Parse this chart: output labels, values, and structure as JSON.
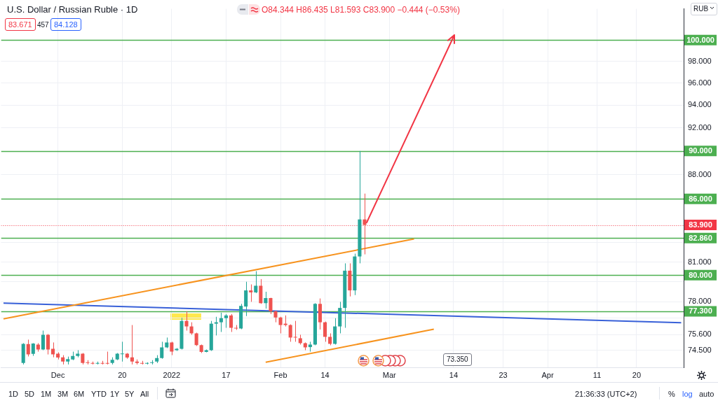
{
  "chart_data": {
    "type": "candlestick",
    "title": "U.S. Dollar / Russian Ruble · 1D",
    "categories": [
      null,
      null,
      null,
      null,
      null,
      null,
      null,
      null,
      null,
      null,
      null,
      "Dec",
      null,
      null,
      null,
      null,
      null,
      null,
      null,
      null,
      null,
      null,
      null,
      null,
      "20",
      null,
      null,
      null,
      null,
      null,
      null,
      null,
      null,
      null,
      "2022",
      null,
      null,
      null,
      null,
      null,
      null,
      null,
      null,
      null,
      null,
      "17",
      null,
      null,
      null,
      null,
      null,
      null,
      null,
      null,
      null,
      null,
      "Feb",
      null,
      null,
      null,
      null,
      null,
      null,
      null,
      null,
      "14",
      null,
      null,
      null,
      null,
      null,
      null,
      null,
      null,
      null,
      null,
      null,
      null,
      "Mar",
      null,
      null,
      null,
      null,
      null,
      null,
      null,
      null,
      null,
      null,
      null,
      null,
      "14",
      null,
      null,
      null,
      null,
      null,
      null,
      null,
      null,
      null,
      "23",
      null,
      null,
      null,
      null,
      null,
      null,
      null,
      null,
      "Apr",
      null,
      null,
      null,
      null,
      null,
      null,
      null,
      null,
      null,
      "11",
      null,
      null,
      null,
      null,
      null,
      null,
      null,
      "20",
      null,
      null,
      null,
      null,
      null,
      null,
      null,
      null,
      null
    ],
    "ohlc": [
      null,
      null,
      null,
      null,
      [
        73.6,
        75.0,
        73.5,
        74.95
      ],
      [
        74.94,
        75.25,
        74.06,
        74.21
      ],
      [
        74.24,
        75.0,
        74.1,
        74.97
      ],
      [
        74.9,
        75.0,
        74.4,
        74.55
      ],
      [
        74.55,
        75.9,
        74.5,
        75.6
      ],
      [
        75.6,
        75.65,
        74.2,
        74.55
      ],
      [
        74.6,
        75.05,
        74.0,
        74.2
      ],
      [
        74.25,
        74.35,
        73.85,
        73.99
      ],
      [
        74.0,
        74.15,
        73.5,
        73.7
      ],
      [
        73.7,
        74.05,
        73.5,
        73.88
      ],
      [
        73.85,
        74.4,
        73.8,
        74.1
      ],
      [
        74.1,
        74.5,
        74.0,
        74.25
      ],
      [
        74.25,
        74.3,
        73.5,
        73.6
      ],
      [
        73.65,
        73.8,
        73.5,
        73.6
      ],
      [
        73.6,
        73.7,
        73.5,
        73.55
      ],
      [
        73.55,
        73.7,
        73.5,
        73.6
      ],
      [
        73.6,
        73.75,
        73.5,
        73.55
      ],
      [
        73.6,
        74.4,
        73.5,
        73.55
      ],
      [
        73.6,
        74.0,
        73.5,
        73.83
      ],
      [
        73.85,
        74.3,
        73.8,
        74.25
      ],
      [
        74.22,
        75.1,
        73.7,
        74.25
      ],
      [
        74.25,
        74.3,
        73.9,
        73.99
      ],
      [
        74.0,
        76.3,
        73.5,
        73.7
      ],
      [
        73.7,
        73.85,
        73.5,
        73.6
      ],
      [
        73.6,
        73.75,
        73.5,
        73.55
      ],
      [
        73.55,
        73.65,
        73.5,
        73.6
      ],
      [
        73.6,
        73.8,
        73.5,
        73.65
      ],
      [
        73.7,
        74.15,
        73.6,
        73.95
      ],
      [
        73.95,
        75.1,
        73.9,
        74.7
      ],
      [
        74.7,
        75.4,
        74.65,
        75.05
      ],
      [
        75.05,
        75.1,
        74.15,
        74.4
      ],
      [
        74.5,
        74.65,
        74.45,
        74.6
      ],
      [
        74.6,
        76.82,
        74.55,
        76.6
      ],
      [
        76.6,
        77.3,
        75.9,
        76.2
      ],
      [
        76.2,
        76.5,
        75.6,
        75.7
      ],
      [
        75.7,
        75.75,
        74.8,
        74.86
      ],
      [
        74.86,
        74.9,
        74.3,
        74.38
      ],
      [
        74.38,
        74.55,
        74.35,
        74.5
      ],
      [
        74.5,
        76.6,
        74.45,
        76.4
      ],
      [
        76.4,
        76.9,
        75.55,
        76.5
      ],
      [
        76.5,
        77.2,
        75.8,
        76.8
      ],
      [
        76.8,
        77.1,
        76.1,
        77.0
      ],
      [
        77.0,
        77.1,
        75.8,
        76.1
      ],
      [
        76.1,
        76.3,
        75.95,
        76.05
      ],
      [
        76.05,
        77.85,
        76.0,
        77.7
      ],
      [
        77.65,
        79.5,
        76.95,
        78.85
      ],
      [
        78.85,
        79.3,
        78.0,
        78.7
      ],
      [
        78.7,
        80.3,
        78.65,
        79.2
      ],
      [
        79.2,
        79.7,
        77.85,
        77.9
      ],
      [
        77.9,
        78.75,
        77.5,
        78.28
      ],
      [
        78.28,
        78.3,
        77.1,
        77.3
      ],
      [
        77.3,
        77.35,
        76.5,
        76.85
      ],
      [
        76.85,
        76.9,
        75.7,
        76.3
      ],
      [
        76.4,
        77.0,
        76.2,
        76.3
      ],
      [
        76.3,
        76.35,
        75.1,
        75.4
      ],
      [
        75.45,
        76.6,
        75.1,
        75.4
      ],
      [
        75.35,
        75.6,
        74.9,
        75.0
      ],
      [
        75.0,
        75.05,
        74.5,
        74.7
      ],
      [
        74.72,
        75.1,
        74.4,
        74.9
      ],
      [
        74.9,
        77.9,
        74.85,
        77.85
      ],
      [
        77.85,
        78.25,
        75.98,
        76.5
      ],
      [
        76.5,
        76.55,
        75.1,
        75.45
      ],
      [
        75.45,
        75.7,
        74.85,
        74.95
      ],
      [
        74.95,
        76.8,
        74.9,
        76.2
      ],
      [
        76.2,
        78.0,
        75.7,
        77.55
      ],
      [
        77.55,
        80.9,
        76.1,
        80.34
      ],
      [
        80.34,
        80.9,
        78.4,
        78.85
      ],
      [
        78.85,
        81.65,
        78.5,
        81.43
      ],
      [
        81.43,
        90.0,
        80.9,
        84.344
      ],
      [
        84.344,
        86.435,
        81.593,
        83.9
      ],
      null,
      null,
      null,
      null,
      null,
      null,
      null,
      null,
      null,
      null,
      null,
      null,
      null,
      null,
      null,
      null,
      null,
      null,
      null,
      null,
      null,
      null,
      null,
      null,
      null,
      null,
      null,
      null,
      null,
      null,
      null,
      null,
      null,
      null,
      null,
      null,
      null,
      null,
      null,
      null,
      null,
      null,
      null,
      null,
      null,
      null,
      null,
      null,
      null,
      null,
      null,
      null,
      null,
      null,
      null,
      null,
      null,
      null,
      null,
      null,
      null,
      null,
      null,
      null
    ],
    "colors": [
      null,
      null,
      null,
      null,
      "#26a69a",
      "#ef5350",
      "#26a69a",
      "#ef5350",
      "#26a69a",
      "#ef5350",
      "#ef5350",
      "#ef5350",
      "#ef5350",
      "#26a69a",
      "#26a69a",
      "#26a69a",
      "#ef5350",
      "#ef5350",
      "#ef5350",
      "#26a69a",
      "#ef5350",
      "#ef5350",
      "#26a69a",
      "#26a69a",
      "#26a69a",
      "#ef5350",
      "#ef5350",
      "#ef5350",
      "#ef5350",
      "#26a69a",
      "#26a69a",
      "#26a69a",
      "#26a69a",
      "#26a69a",
      "#ef5350",
      "#26a69a",
      "#26a69a",
      "#ef5350",
      "#ef5350",
      "#ef5350",
      "#ef5350",
      "#26a69a",
      "#26a69a",
      "#26a69a",
      "#26a69a",
      "#26a69a",
      "#ef5350",
      "#ef5350",
      "#26a69a",
      "#26a69a",
      "#ef5350",
      "#26a69a",
      "#ef5350",
      "#26a69a",
      "#ef5350",
      "#ef5350",
      "#ef5350",
      "#ef5350",
      "#ef5350",
      "#ef5350",
      "#ef5350",
      "#ef5350",
      "#26a69a",
      "#26a69a",
      "#ef5350",
      "#ef5350",
      "#ef5350",
      "#26a69a",
      "#26a69a",
      "#26a69a",
      "#ef5350",
      "#26a69a",
      "#26a69a",
      "#ef5350",
      null,
      null,
      null,
      null,
      null,
      null,
      null,
      null,
      null,
      null,
      null,
      null,
      null,
      null,
      null,
      null,
      null,
      null,
      null,
      null,
      null,
      null,
      null,
      null,
      null,
      null,
      null,
      null,
      null,
      null,
      null,
      null,
      null,
      null,
      null,
      null,
      null,
      null,
      null,
      null,
      null,
      null,
      null,
      null,
      null,
      null,
      null,
      null,
      null,
      null,
      null,
      null,
      null,
      null,
      null,
      null,
      null,
      null,
      null,
      null,
      null,
      null,
      null,
      null
    ],
    "series": [
      {
        "type": "line",
        "color": "#f7931e",
        "values": [
          76.75,
          null,
          null,
          null,
          null,
          null,
          null,
          null,
          null,
          null,
          null,
          null,
          null,
          null,
          null,
          null,
          null,
          null,
          null,
          null,
          null,
          null,
          null,
          null,
          null,
          null,
          null,
          null,
          null,
          null,
          null,
          null,
          null,
          null,
          null,
          null,
          null,
          null,
          null,
          null,
          null,
          null,
          null,
          null,
          null,
          null,
          null,
          null,
          null,
          null,
          null,
          null,
          null,
          null,
          null,
          null,
          null,
          null,
          null,
          null,
          null,
          null,
          null,
          null,
          null,
          null,
          null,
          null,
          null,
          null,
          null,
          null,
          null,
          null,
          null,
          null,
          null,
          null,
          null,
          null,
          null,
          null,
          null,
          82.8,
          null,
          null,
          null,
          null,
          null,
          null,
          null,
          null,
          null,
          null,
          null,
          null,
          null,
          null,
          null,
          null,
          null,
          null,
          null,
          null,
          null,
          null,
          null,
          null,
          null,
          null,
          null,
          null,
          null,
          null,
          null,
          null,
          null,
          null,
          null,
          null,
          null,
          null,
          null,
          null,
          null,
          null,
          null,
          null,
          null,
          null,
          null,
          null,
          null,
          null,
          null,
          null,
          null,
          null
        ]
      },
      {
        "type": "line",
        "color": "#f7931e",
        "values": [
          null,
          null,
          null,
          null,
          null,
          null,
          null,
          null,
          null,
          null,
          null,
          null,
          null,
          null,
          null,
          null,
          null,
          null,
          null,
          null,
          null,
          null,
          null,
          null,
          null,
          null,
          null,
          null,
          null,
          null,
          null,
          null,
          null,
          null,
          null,
          null,
          null,
          null,
          null,
          null,
          null,
          null,
          null,
          null,
          null,
          null,
          null,
          null,
          null,
          null,
          null,
          null,
          null,
          73.65,
          null,
          null,
          null,
          null,
          null,
          null,
          null,
          null,
          null,
          null,
          null,
          null,
          null,
          null,
          null,
          null,
          null,
          null,
          null,
          null,
          null,
          null,
          null,
          null,
          null,
          null,
          null,
          null,
          null,
          null,
          null,
          null,
          null,
          76.0,
          null,
          null,
          null,
          null,
          null,
          null,
          null,
          null,
          null,
          null,
          null,
          null,
          null,
          null,
          null,
          null,
          null,
          null,
          null,
          null,
          null,
          null,
          null,
          null,
          null,
          null,
          null,
          null,
          null,
          null,
          null,
          null,
          null,
          null,
          null,
          null,
          null,
          null,
          null,
          null,
          null,
          null,
          null,
          null,
          null,
          null,
          null,
          null,
          null,
          null
        ]
      },
      {
        "type": "line",
        "color": "#3860d8",
        "values": [
          77.9,
          null,
          null,
          null,
          null,
          null,
          null,
          null,
          null,
          null,
          null,
          null,
          null,
          null,
          null,
          null,
          null,
          null,
          null,
          null,
          null,
          null,
          null,
          null,
          null,
          null,
          null,
          null,
          null,
          null,
          null,
          null,
          null,
          null,
          null,
          null,
          null,
          null,
          null,
          null,
          null,
          null,
          null,
          null,
          null,
          null,
          null,
          null,
          null,
          null,
          null,
          null,
          null,
          null,
          null,
          null,
          null,
          null,
          null,
          null,
          null,
          null,
          null,
          null,
          null,
          null,
          null,
          null,
          null,
          null,
          null,
          null,
          null,
          null,
          null,
          null,
          null,
          null,
          null,
          null,
          null,
          null,
          null,
          null,
          null,
          null,
          null,
          null,
          null,
          null,
          null,
          null,
          null,
          null,
          null,
          null,
          null,
          null,
          null,
          null,
          null,
          null,
          null,
          null,
          null,
          null,
          null,
          null,
          null,
          null,
          null,
          null,
          null,
          null,
          null,
          null,
          null,
          null,
          null,
          null,
          null,
          null,
          null,
          null,
          null,
          null,
          null,
          null,
          null,
          null,
          null,
          null,
          null,
          null,
          null,
          null,
          null,
          76.47
        ]
      }
    ],
    "ylim": [
      73.3,
      103
    ],
    "yticks": [
      {
        "value": 74.5,
        "label": "74.500"
      },
      {
        "value": 75.6,
        "label": "75.600"
      },
      {
        "value": 76.8,
        "label": null
      },
      {
        "value": 78,
        "label": "78.000"
      },
      {
        "value": 79.5,
        "label": null
      },
      {
        "value": 81,
        "label": "81.000"
      },
      {
        "value": 82.5,
        "label": null
      },
      {
        "value": 88,
        "label": "88.000"
      },
      {
        "value": 92,
        "label": "92.000"
      },
      {
        "value": 94,
        "label": "94.000"
      },
      {
        "value": 96,
        "label": "96.000"
      },
      {
        "value": 98,
        "label": "98.000"
      }
    ],
    "log": true,
    "grid": true,
    "ref_lines": [
      {
        "axis": "y",
        "value": 100,
        "label": "100.000",
        "color": "#4caf50"
      },
      {
        "axis": "y",
        "value": 90,
        "label": "90.000",
        "color": "#4caf50"
      },
      {
        "axis": "y",
        "value": 86,
        "label": "86.000",
        "color": "#4caf50"
      },
      {
        "axis": "y",
        "value": 82.86,
        "label": "82.860",
        "color": "#4caf50"
      },
      {
        "axis": "y",
        "value": 80,
        "label": "80.000",
        "color": "#4caf50"
      },
      {
        "axis": "y",
        "value": 77.3,
        "label": "77.300",
        "color": "#4caf50"
      },
      {
        "axis": "y",
        "value": 83.9,
        "label": "83.900",
        "color": "#f23645",
        "line_style": "dotted"
      }
    ],
    "annotations": [
      "O84.344 H86.435 L81.593 C83.900 −0.444 (−0.53%)",
      "83.671",
      "457",
      "84.128",
      "73.350",
      "RUB",
      "1D",
      "5D",
      "1M",
      "3M",
      "6M",
      "YTD",
      "1Y",
      "5Y",
      "All",
      "21:36:33 (UTC+2)",
      "%",
      "log",
      "auto"
    ]
  }
}
